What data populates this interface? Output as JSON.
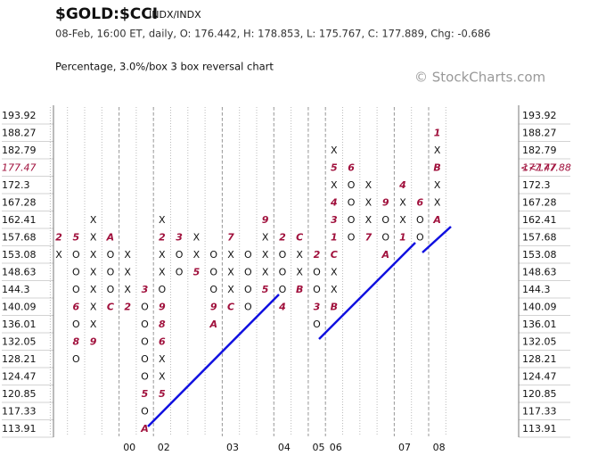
{
  "chart_data": {
    "type": "pnf",
    "title": "$GOLD:$CCI",
    "exchange": "INDX/INDX",
    "subtitle": "08-Feb, 16:00 ET, daily, O: 176.442, H: 178.853, L: 175.767, C: 177.889, Chg: -0.686",
    "description": "Percentage, 3.0%/box 3 box reversal chart",
    "watermark": "© StockCharts.com",
    "yticks": [
      113.91,
      117.33,
      120.85,
      124.47,
      128.21,
      132.05,
      136.01,
      140.09,
      144.3,
      148.63,
      153.08,
      157.68,
      162.41,
      167.28,
      172.3,
      177.47,
      182.79,
      188.27,
      193.92
    ],
    "last_value": 177.88,
    "last_value_label": "<<177.88",
    "highlight_color": "#a0103c",
    "box_color": "#111111",
    "month_color": "#a0103c",
    "trend_color": "#1010e0",
    "years": [
      "00",
      "02",
      "03",
      "04",
      "05",
      "06",
      "07",
      "08"
    ],
    "columns": [
      {
        "start": 10,
        "boxes": [
          "X",
          "2"
        ]
      },
      {
        "start": 4,
        "boxes": [
          "O",
          "8",
          "O",
          "6",
          "O",
          "O",
          "O",
          "5"
        ]
      },
      {
        "start": 5,
        "boxes": [
          "9",
          "X",
          "X",
          "X",
          "X",
          "X",
          "X",
          "X"
        ]
      },
      {
        "start": 7,
        "boxes": [
          "C",
          "O",
          "O",
          "O",
          "A"
        ]
      },
      {
        "start": 7,
        "boxes": [
          "2",
          "X",
          "X",
          "X"
        ]
      },
      {
        "start": 0,
        "boxes": [
          "A",
          "O",
          "5",
          "O",
          "O",
          "O",
          "O",
          "O",
          "3"
        ]
      },
      {
        "start": 2,
        "boxes": [
          "5",
          "X",
          "X",
          "6",
          "8",
          "9",
          "O",
          "X",
          "X",
          "2",
          "X"
        ]
      },
      {
        "start": 9,
        "boxes": [
          "O",
          "O",
          "3"
        ]
      },
      {
        "start": 9,
        "boxes": [
          "5",
          "X",
          "X"
        ]
      },
      {
        "start": 6,
        "boxes": [
          "A",
          "9",
          "O",
          "O",
          "O"
        ]
      },
      {
        "start": 7,
        "boxes": [
          "C",
          "X",
          "X",
          "X",
          "7"
        ]
      },
      {
        "start": 7,
        "boxes": [
          "O",
          "O",
          "O",
          "O"
        ]
      },
      {
        "start": 8,
        "boxes": [
          "5",
          "X",
          "X",
          "X",
          "9"
        ]
      },
      {
        "start": 7,
        "boxes": [
          "4",
          "O",
          "O",
          "O",
          "2"
        ]
      },
      {
        "start": 8,
        "boxes": [
          "B",
          "X",
          "X",
          "C"
        ]
      },
      {
        "start": 6,
        "boxes": [
          "O",
          "3",
          "O",
          "O",
          "2"
        ]
      },
      {
        "start": 7,
        "boxes": [
          "B",
          "X",
          "X",
          "C",
          "1",
          "3",
          "4",
          "X",
          "5",
          "X"
        ]
      },
      {
        "start": 11,
        "boxes": [
          "O",
          "O",
          "O",
          "O",
          "6"
        ]
      },
      {
        "start": 11,
        "boxes": [
          "7",
          "X",
          "X",
          "X"
        ]
      },
      {
        "start": 10,
        "boxes": [
          "A",
          "O",
          "O",
          "9"
        ]
      },
      {
        "start": 11,
        "boxes": [
          "1",
          "X",
          "X",
          "4"
        ]
      },
      {
        "start": 11,
        "boxes": [
          "O",
          "O",
          "6"
        ]
      },
      {
        "start": 12,
        "boxes": [
          "A",
          "X",
          "X",
          "B",
          "X",
          "1"
        ]
      }
    ]
  }
}
